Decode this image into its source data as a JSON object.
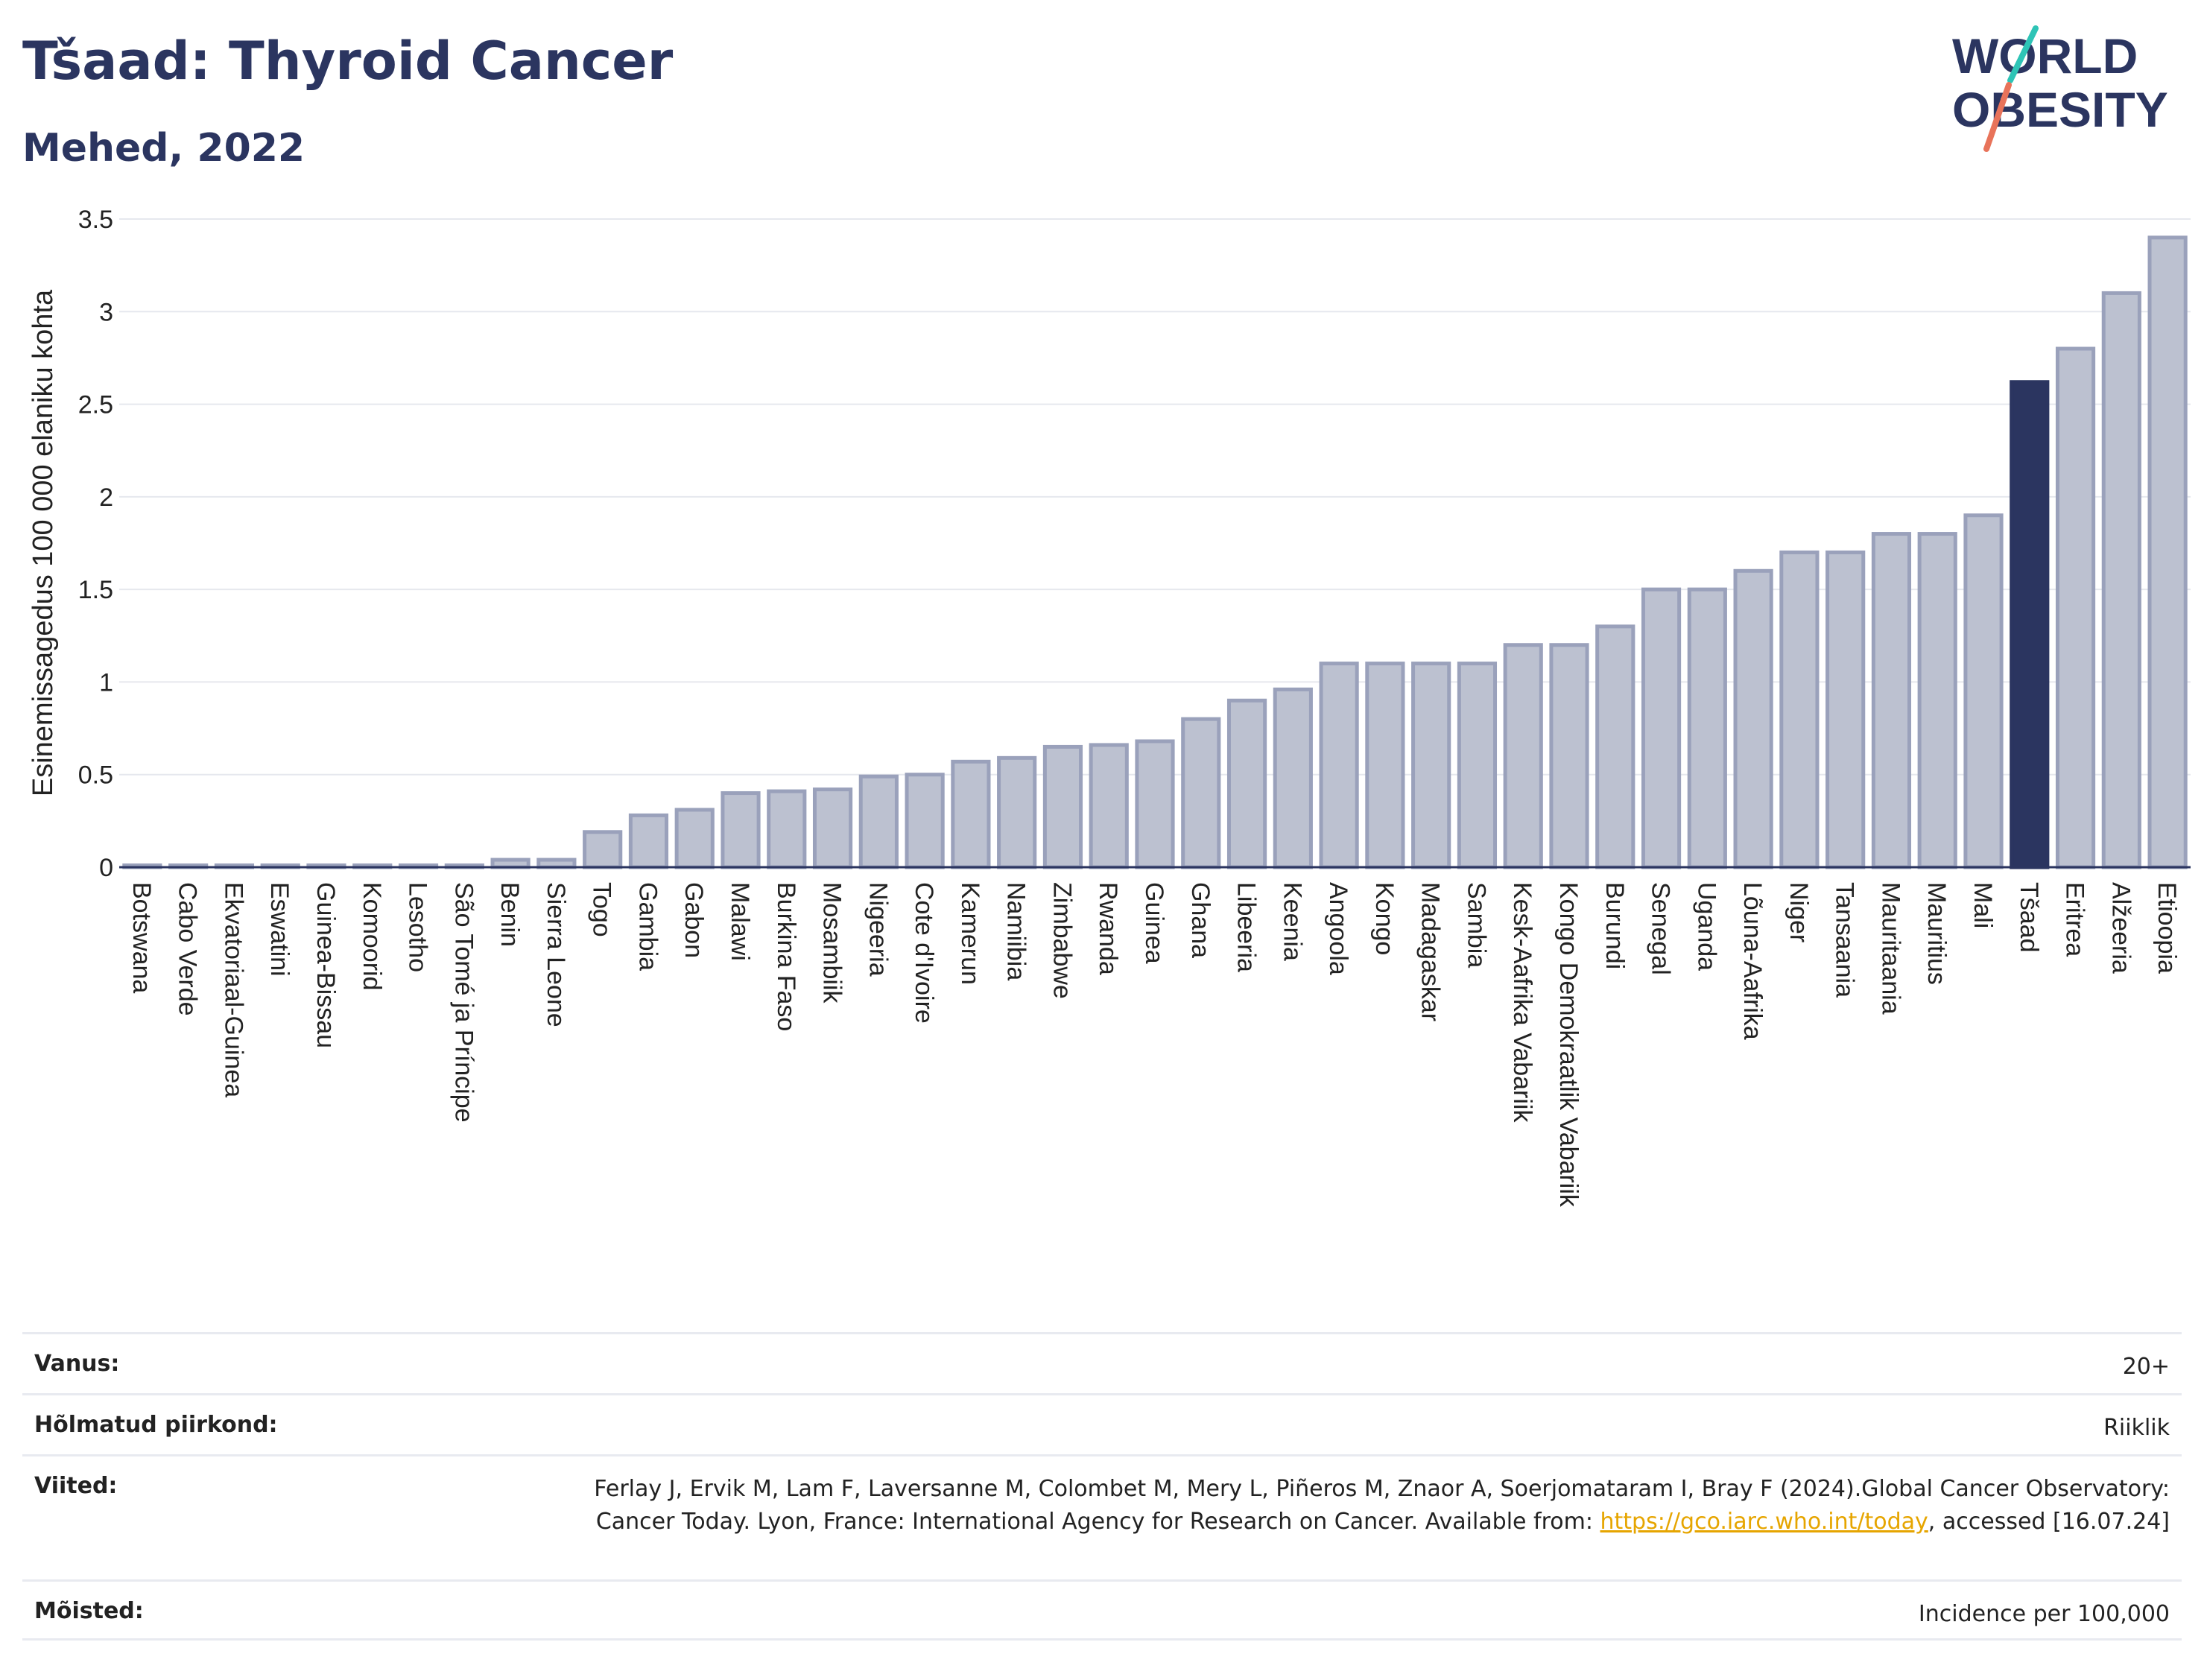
{
  "header": {
    "title": "Tšaad: Thyroid Cancer",
    "subtitle": "Mehed, 2022"
  },
  "logo": {
    "line1": "WORLD",
    "line2": "OBESITY",
    "accent_teal": "#2ec4b6",
    "accent_coral": "#e8735a",
    "text_color": "#2b3560"
  },
  "colors": {
    "bar_fill": "#bcc1d0",
    "bar_stroke": "#9aa1bb",
    "highlight_fill": "#2b3560",
    "grid": "#e6e8ee",
    "axis": "#2b3560"
  },
  "chart_data": {
    "type": "bar",
    "title": "",
    "xlabel": "",
    "ylabel": "Esinemissagedus 100 000 elaniku kohta",
    "ylim": [
      0,
      3.5
    ],
    "yticks": [
      {
        "value": 0,
        "label": "0"
      },
      {
        "value": 0.5,
        "label": "0.5"
      },
      {
        "value": 1,
        "label": "1"
      },
      {
        "value": 1.5,
        "label": "1.5"
      },
      {
        "value": 2,
        "label": "2"
      },
      {
        "value": 2.5,
        "label": "2.5"
      },
      {
        "value": 3,
        "label": "3"
      },
      {
        "value": 3.5,
        "label": "3.5"
      }
    ],
    "grid": true,
    "highlight": "Tšaad",
    "categories": [
      "Botswana",
      "Cabo Verde",
      "Ekvatoriaal-Guinea",
      "Eswatini",
      "Guinea-Bissau",
      "Komoorid",
      "Lesotho",
      "São Tomé ja Príncipe",
      "Benin",
      "Sierra Leone",
      "Togo",
      "Gambia",
      "Gabon",
      "Malawi",
      "Burkina Faso",
      "Mosambiik",
      "Nigeeria",
      "Cote d'Ivoire",
      "Kamerun",
      "Namiibia",
      "Zimbabwe",
      "Rwanda",
      "Guinea",
      "Ghana",
      "Libeeria",
      "Keenia",
      "Angoola",
      "Kongo",
      "Madagaskar",
      "Sambia",
      "Kesk-Aafrika Vabariik",
      "Kongo Demokraatlik Vabariik",
      "Burundi",
      "Senegal",
      "Uganda",
      "Lõuna-Aafrika",
      "Niger",
      "Tansaania",
      "Mauritaania",
      "Mauritius",
      "Mali",
      "Tšaad",
      "Eritrea",
      "Alžeeria",
      "Etioopia"
    ],
    "values": [
      0.01,
      0.01,
      0.01,
      0.01,
      0.01,
      0.01,
      0.01,
      0.01,
      0.04,
      0.04,
      0.19,
      0.28,
      0.31,
      0.4,
      0.41,
      0.42,
      0.49,
      0.5,
      0.57,
      0.59,
      0.65,
      0.66,
      0.68,
      0.8,
      0.9,
      0.96,
      1.1,
      1.1,
      1.1,
      1.1,
      1.2,
      1.2,
      1.3,
      1.5,
      1.5,
      1.6,
      1.7,
      1.7,
      1.8,
      1.8,
      1.9,
      2.62,
      2.8,
      3.1,
      3.4
    ]
  },
  "meta": {
    "rows": [
      {
        "label": "Vanus:",
        "value": "20+"
      },
      {
        "label": "Hõlmatud piirkond:",
        "value": "Riiklik"
      },
      {
        "label": "Viited:",
        "value_before": "Ferlay J, Ervik M, Lam F, Laversanne M, Colombet M, Mery L, Piñeros M, Znaor A, Soerjomataram I, Bray F (2024).Global Cancer Observatory: Cancer Today. Lyon, France: International Agency for Research on Cancer. Available from: ",
        "link": "https://gco.iarc.who.int/today",
        "value_after": ", accessed [16.07.24]"
      },
      {
        "label": "Mõisted:",
        "value": "Incidence per 100,000"
      }
    ]
  }
}
